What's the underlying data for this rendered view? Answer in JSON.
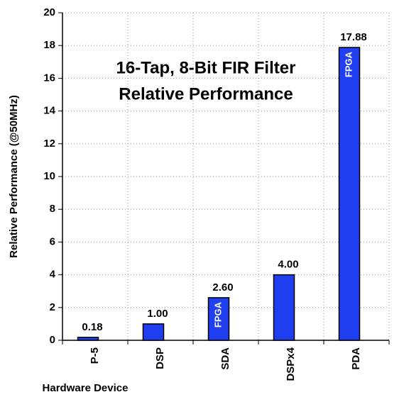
{
  "chart_data": {
    "type": "bar",
    "title": [
      "16-Tap, 8-Bit FIR Filter",
      "Relative Performance"
    ],
    "x_label": "Hardware Device",
    "y_label": "Relative Performance (@50MHz)",
    "categories": [
      "P-5",
      "DSP",
      "SDA",
      "DSPx4",
      "PDA"
    ],
    "values": [
      0.18,
      1.0,
      2.6,
      4.0,
      17.88
    ],
    "value_labels": [
      "0.18",
      "1.00",
      "2.60",
      "4.00",
      "17.88"
    ],
    "bar_labels": [
      null,
      null,
      "FPGA",
      null,
      "FPGA"
    ],
    "color": "#1f3ff0",
    "ylim": [
      0,
      20
    ],
    "yticks": [
      0,
      2,
      4,
      6,
      8,
      10,
      12,
      14,
      16,
      18,
      20
    ],
    "grid": true
  }
}
